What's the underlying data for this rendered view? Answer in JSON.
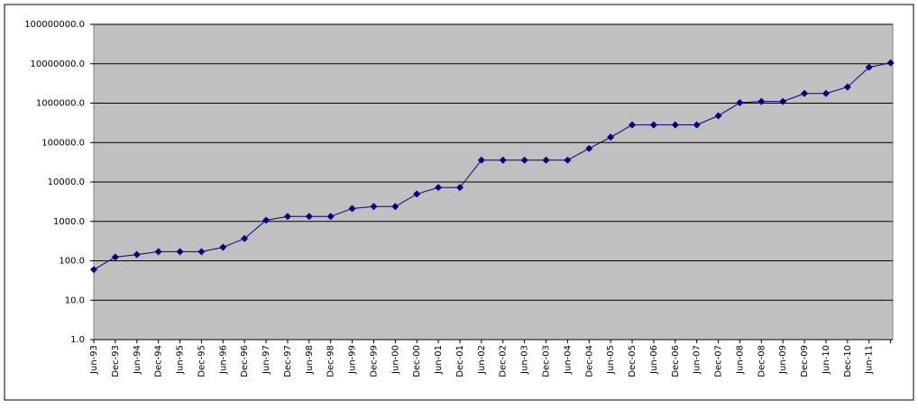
{
  "chart_data": {
    "type": "line",
    "log_scale": true,
    "grid": true,
    "plot_background": "#c0c0c0",
    "categories": [
      "Jun-93",
      "Dec-93",
      "Jun-94",
      "Dec-94",
      "Jun-95",
      "Dec-95",
      "Jun-96",
      "Dec-96",
      "Jun-97",
      "Dec-97",
      "Jun-98",
      "Dec-98",
      "Jun-99",
      "Dec-99",
      "Jun-00",
      "Dec-00",
      "Jun-01",
      "Dec-01",
      "Jun-02",
      "Dec-02",
      "Jun-03",
      "Dec-03",
      "Jun-04",
      "Dec-04",
      "Jun-05",
      "Dec-05",
      "Jun-06",
      "Dec-06",
      "Jun-07",
      "Dec-07",
      "Jun-08",
      "Dec-08",
      "Jun-09",
      "Dec-09",
      "Jun-10",
      "Dec-10",
      "Jun-11",
      null
    ],
    "series": [
      {
        "color": "#000080",
        "values": [
          59.7,
          124,
          143.4,
          170,
          170,
          170,
          220.4,
          368.2,
          1068,
          1338,
          1338,
          1338,
          2121,
          2379,
          2379,
          4938,
          7226,
          7226,
          35860,
          35860,
          35860,
          35860,
          35860,
          70720,
          136800,
          280600,
          280600,
          280600,
          280600,
          478200,
          1026000,
          1105000,
          1105000,
          1759000,
          1759000,
          2566000,
          8162000,
          10510000
        ]
      }
    ],
    "ylim": [
      1,
      100000000
    ],
    "yticks": [
      {
        "value": 1,
        "label": "1.0"
      },
      {
        "value": 10,
        "label": "10.0"
      },
      {
        "value": 100,
        "label": "100.0"
      },
      {
        "value": 1000,
        "label": "1000.0"
      },
      {
        "value": 10000,
        "label": "10000.0"
      },
      {
        "value": 100000,
        "label": "100000.0"
      },
      {
        "value": 1000000,
        "label": "1000000.0"
      },
      {
        "value": 10000000,
        "label": "10000000.0"
      },
      {
        "value": 100000000,
        "label": "100000000.0"
      }
    ]
  }
}
